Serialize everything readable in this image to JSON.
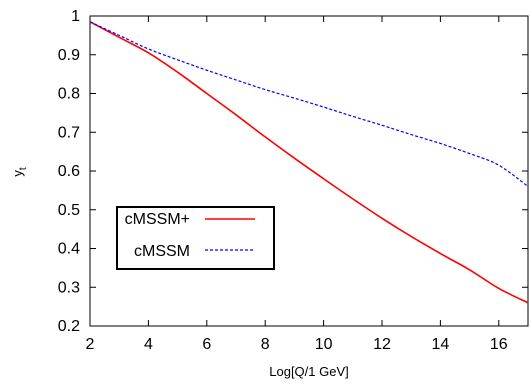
{
  "chart_data": {
    "type": "line",
    "xlabel": "Log[Q/1 GeV]",
    "ylabel": "y",
    "ylabel_subscript": "t",
    "xlim": [
      2,
      17
    ],
    "ylim": [
      0.2,
      1.0
    ],
    "xticks": [
      2,
      4,
      6,
      8,
      10,
      12,
      14,
      16
    ],
    "yticks": [
      0.2,
      0.3,
      0.4,
      0.5,
      0.6,
      0.7,
      0.8,
      0.9,
      1.0
    ],
    "xtick_labels": [
      "2",
      "4",
      "6",
      "8",
      "10",
      "12",
      "14",
      "16"
    ],
    "ytick_labels": [
      "0.2",
      "0.3",
      "0.4",
      "0.5",
      "0.6",
      "0.7",
      "0.8",
      "0.9",
      "1"
    ],
    "grid": false,
    "legend_position": "lower-left",
    "series": [
      {
        "name": "cMSSM+",
        "color": "#ff0000",
        "line_style": "solid",
        "x": [
          2,
          3,
          4,
          5,
          6,
          7,
          8,
          9,
          10,
          11,
          12,
          13,
          14,
          15,
          16,
          17
        ],
        "y": [
          0.985,
          0.945,
          0.905,
          0.855,
          0.8,
          0.745,
          0.688,
          0.633,
          0.58,
          0.528,
          0.478,
          0.431,
          0.387,
          0.345,
          0.297,
          0.26
        ]
      },
      {
        "name": "cMSSM",
        "color": "#0000ff",
        "line_style": "dashed",
        "x": [
          2,
          3,
          4,
          5,
          6,
          7,
          8,
          9,
          10,
          11,
          12,
          13,
          14,
          15,
          16,
          17
        ],
        "y": [
          0.985,
          0.95,
          0.915,
          0.887,
          0.86,
          0.835,
          0.81,
          0.788,
          0.765,
          0.741,
          0.718,
          0.694,
          0.671,
          0.645,
          0.615,
          0.56
        ]
      }
    ]
  }
}
